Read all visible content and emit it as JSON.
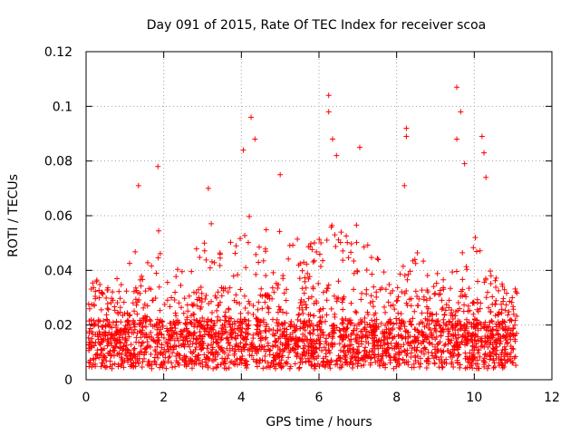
{
  "chart_data": {
    "type": "scatter",
    "title": "Day 091 of 2015, Rate Of TEC Index for receiver scoa",
    "xlabel": "GPS time / hours",
    "ylabel": "ROTI / TECUs",
    "xlim": [
      0,
      12
    ],
    "ylim": [
      0,
      0.12
    ],
    "xticks": [
      0,
      2,
      4,
      6,
      8,
      10,
      12
    ],
    "xtick_labels": [
      "0",
      "2",
      "4",
      "6",
      "8",
      "10",
      "12"
    ],
    "yticks": [
      0,
      0.02,
      0.04,
      0.06,
      0.08,
      0.1,
      0.12
    ],
    "ytick_labels": [
      "0",
      "0.02",
      "0.04",
      "0.06",
      "0.08",
      "0.1",
      "0.12"
    ],
    "grid": true,
    "marker": "+",
    "color": "#ff0000",
    "data_x_range_hours": [
      0.05,
      11.1
    ],
    "notable_points": [
      {
        "x": 1.35,
        "y": 0.071
      },
      {
        "x": 1.85,
        "y": 0.078
      },
      {
        "x": 3.15,
        "y": 0.07
      },
      {
        "x": 4.05,
        "y": 0.084
      },
      {
        "x": 4.25,
        "y": 0.096
      },
      {
        "x": 4.35,
        "y": 0.088
      },
      {
        "x": 5.0,
        "y": 0.075
      },
      {
        "x": 6.25,
        "y": 0.104
      },
      {
        "x": 6.25,
        "y": 0.098
      },
      {
        "x": 6.35,
        "y": 0.088
      },
      {
        "x": 6.45,
        "y": 0.082
      },
      {
        "x": 7.05,
        "y": 0.085
      },
      {
        "x": 8.25,
        "y": 0.092
      },
      {
        "x": 8.25,
        "y": 0.089
      },
      {
        "x": 8.2,
        "y": 0.071
      },
      {
        "x": 9.55,
        "y": 0.107
      },
      {
        "x": 9.65,
        "y": 0.098
      },
      {
        "x": 9.55,
        "y": 0.088
      },
      {
        "x": 9.75,
        "y": 0.079
      },
      {
        "x": 10.2,
        "y": 0.089
      },
      {
        "x": 10.25,
        "y": 0.083
      },
      {
        "x": 10.3,
        "y": 0.074
      }
    ],
    "envelope": {
      "x": [
        0.1,
        0.5,
        0.8,
        1.0,
        1.3,
        1.5,
        1.7,
        1.85,
        2.1,
        2.5,
        2.75,
        3.0,
        3.2,
        3.5,
        3.8,
        4.0,
        4.25,
        4.5,
        4.7,
        5.0,
        5.3,
        5.6,
        5.9,
        6.1,
        6.3,
        6.5,
        6.8,
        7.05,
        7.3,
        7.6,
        7.8,
        8.0,
        8.2,
        8.5,
        8.8,
        9.1,
        9.4,
        9.6,
        9.8,
        10.0,
        10.2,
        10.5,
        10.8,
        11.05
      ],
      "low": [
        0.009,
        0.008,
        0.008,
        0.008,
        0.008,
        0.009,
        0.009,
        0.009,
        0.009,
        0.009,
        0.009,
        0.009,
        0.009,
        0.009,
        0.009,
        0.009,
        0.009,
        0.009,
        0.009,
        0.009,
        0.009,
        0.009,
        0.009,
        0.009,
        0.009,
        0.009,
        0.009,
        0.009,
        0.009,
        0.009,
        0.009,
        0.009,
        0.009,
        0.009,
        0.009,
        0.009,
        0.009,
        0.009,
        0.009,
        0.009,
        0.009,
        0.009,
        0.009,
        0.009
      ],
      "high": [
        0.04,
        0.032,
        0.04,
        0.038,
        0.052,
        0.05,
        0.042,
        0.058,
        0.04,
        0.042,
        0.05,
        0.048,
        0.06,
        0.048,
        0.052,
        0.058,
        0.062,
        0.054,
        0.06,
        0.058,
        0.054,
        0.05,
        0.054,
        0.056,
        0.058,
        0.058,
        0.052,
        0.06,
        0.052,
        0.044,
        0.035,
        0.03,
        0.052,
        0.052,
        0.046,
        0.044,
        0.04,
        0.044,
        0.05,
        0.054,
        0.05,
        0.04,
        0.034,
        0.03
      ]
    }
  }
}
